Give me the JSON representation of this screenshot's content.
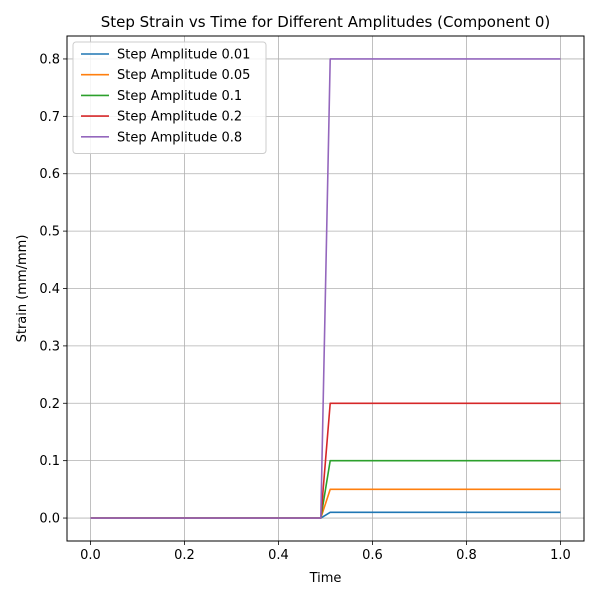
{
  "chart_data": {
    "type": "line",
    "title": "Step Strain vs Time for Different Amplitudes (Component 0)",
    "xlabel": "Time",
    "ylabel": "Strain (mm/mm)",
    "xlim": [
      -0.05,
      1.05
    ],
    "ylim": [
      -0.04,
      0.84
    ],
    "xticks": [
      0.0,
      0.2,
      0.4,
      0.6,
      0.8,
      1.0
    ],
    "xtick_labels": [
      "0.0",
      "0.2",
      "0.4",
      "0.6",
      "0.8",
      "1.0"
    ],
    "yticks": [
      0.0,
      0.1,
      0.2,
      0.3,
      0.4,
      0.5,
      0.6,
      0.7,
      0.8
    ],
    "ytick_labels": [
      "0.0",
      "0.1",
      "0.2",
      "0.3",
      "0.4",
      "0.5",
      "0.6",
      "0.7",
      "0.8"
    ],
    "grid": true,
    "legend_position": "top-left",
    "x": [
      0.0,
      0.49,
      0.51,
      1.0
    ],
    "series": [
      {
        "name": "Step Amplitude 0.01",
        "color": "#1f77b4",
        "values": [
          0,
          0,
          0.01,
          0.01
        ]
      },
      {
        "name": "Step Amplitude 0.05",
        "color": "#ff7f0e",
        "values": [
          0,
          0,
          0.05,
          0.05
        ]
      },
      {
        "name": "Step Amplitude 0.1",
        "color": "#2ca02c",
        "values": [
          0,
          0,
          0.1,
          0.1
        ]
      },
      {
        "name": "Step Amplitude 0.2",
        "color": "#d62728",
        "values": [
          0,
          0,
          0.2,
          0.2
        ]
      },
      {
        "name": "Step Amplitude 0.8",
        "color": "#9467bd",
        "values": [
          0,
          0,
          0.8,
          0.8
        ]
      }
    ]
  }
}
